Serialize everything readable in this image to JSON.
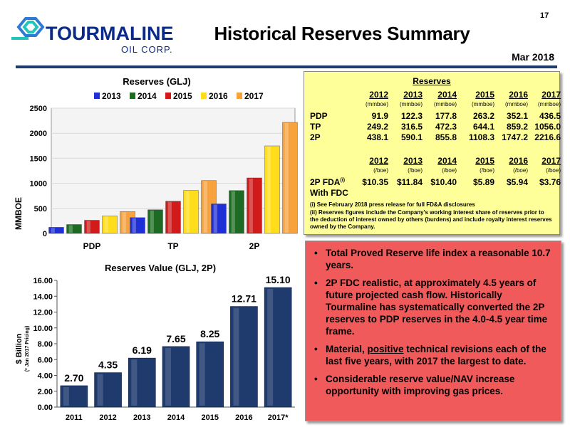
{
  "page_number": "17",
  "title": "Historical Reserves Summary",
  "date": "Mar 2018",
  "logo": {
    "name": "TOURMALINE",
    "sub": "OIL CORP."
  },
  "reserves_table": {
    "title": "Reserves",
    "years": [
      "2012",
      "2013",
      "2014",
      "2015",
      "2016",
      "2017"
    ],
    "units1": [
      "(mmboe)",
      "(mmboe)",
      "(mmboe)",
      "(mmboe)",
      "(mmboe)",
      "(mmboe)"
    ],
    "rows": [
      {
        "label": "PDP",
        "values": [
          "91.9",
          "122.3",
          "177.8",
          "263.2",
          "352.1",
          "436.5"
        ]
      },
      {
        "label": "TP",
        "values": [
          "249.2",
          "316.5",
          "472.3",
          "644.1",
          "859.2",
          "1056.0"
        ]
      },
      {
        "label": "2P",
        "values": [
          "438.1",
          "590.1",
          "855.8",
          "1108.3",
          "1747.2",
          "2216.6"
        ]
      }
    ],
    "units2": [
      "(/boe)",
      "(/boe)",
      "(/boe)",
      "(/boe)",
      "(/boe)",
      "(/boe)"
    ],
    "fda_label": "2P FDA",
    "fda_sup": "(i)",
    "fda_label2": "With FDC",
    "fda_values": [
      "$10.35",
      "$11.84",
      "$10.40",
      "$5.89",
      "$5.94",
      "$3.76"
    ],
    "note1_marker": "(i)",
    "note1": "See February 2018 press release for full FD&A disclosures",
    "note2_marker": "(ii)",
    "note2": "Reserves figures include the Company's working interest share of reserves prior to the deduction of interest owned by others (burdens) and include royalty interest reserves owned by the Company."
  },
  "bullets": [
    {
      "pre": "Total Proved Reserve life index a reasonable 10.7 years.",
      "u": "",
      "post": ""
    },
    {
      "pre": "2P FDC realistic, at approximately 4.5 years of future projected cash flow.  Historically Tourmaline has systematically converted the 2P reserves to PDP reserves in the 4.0-4.5 year time frame.",
      "u": "",
      "post": ""
    },
    {
      "pre": "Material, ",
      "u": "positive",
      "post": " technical revisions each of the last five years, with 2017 the largest to date."
    },
    {
      "pre": "Considerable reserve value/NAV increase opportunity with improving gas prices.",
      "u": "",
      "post": ""
    }
  ],
  "chart_data": [
    {
      "type": "bar",
      "title": "Reserves (GLJ)",
      "ylabel": "MMBOE",
      "categories": [
        "PDP",
        "TP",
        "2P"
      ],
      "ylim": [
        0,
        2500
      ],
      "yticks": [
        "0",
        "500",
        "1000",
        "1500",
        "2000",
        "2500"
      ],
      "grid": true,
      "legend": "top",
      "series": [
        {
          "name": "2013",
          "color": "#1f2fd6",
          "values": [
            122.3,
            316.5,
            590.1
          ]
        },
        {
          "name": "2014",
          "color": "#1d6b22",
          "values": [
            177.8,
            472.3,
            855.8
          ]
        },
        {
          "name": "2015",
          "color": "#d11b1b",
          "values": [
            263.2,
            644.1,
            1108.3
          ]
        },
        {
          "name": "2016",
          "color": "#ffdd1a",
          "values": [
            352.1,
            859.2,
            1747.2
          ]
        },
        {
          "name": "2017",
          "color": "#f7a23c",
          "values": [
            436.5,
            1056.0,
            2216.6
          ]
        }
      ]
    },
    {
      "type": "bar",
      "title": "Reserves Value (GLJ, 2P)",
      "ylabel": "$ Billion",
      "ylabel2": "(* Jan 2017 Pricing)",
      "categories": [
        "2011",
        "2012",
        "2013",
        "2014",
        "2015",
        "2016",
        "2017*"
      ],
      "values": [
        2.7,
        4.35,
        6.19,
        7.65,
        8.25,
        12.71,
        15.1
      ],
      "labels": [
        "2.70",
        "4.35",
        "6.19",
        "7.65",
        "8.25",
        "12.71",
        "15.10"
      ],
      "ylim": [
        0,
        16
      ],
      "yticks": [
        "0.00",
        "2.00",
        "4.00",
        "6.00",
        "8.00",
        "10.00",
        "12.00",
        "14.00",
        "16.00"
      ],
      "color": "#1f3b6e",
      "grid": false
    }
  ]
}
